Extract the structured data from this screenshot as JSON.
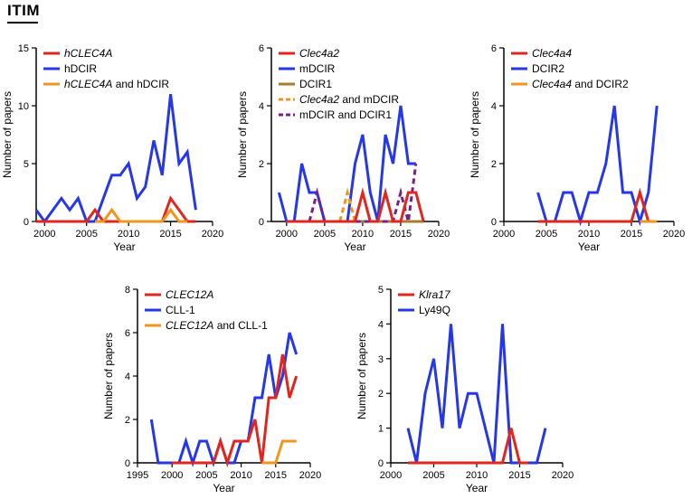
{
  "heading": "ITIM",
  "colors": {
    "red": "#e0261e",
    "blue": "#2637e8",
    "orange": "#f0961e",
    "brown": "#a87c2e",
    "purple": "#7a1f8a"
  },
  "chart_data": [
    {
      "id": "human-clec4a",
      "type": "line",
      "title": "",
      "xlabel": "Year",
      "ylabel": "Number of papers",
      "xlim": [
        1999,
        2020
      ],
      "ylim": [
        0,
        15
      ],
      "xticks": [
        2000,
        2005,
        2010,
        2015,
        2020
      ],
      "yticks": [
        0,
        5,
        10,
        15
      ],
      "legend_position": "top-left",
      "series": [
        {
          "name": "hDCIR",
          "label_parts": [
            {
              "text": "hDCIR",
              "italic": false
            }
          ],
          "color": "#2637e8",
          "dash": "",
          "x": [
            1999,
            2000,
            2001,
            2002,
            2003,
            2004,
            2005,
            2006,
            2007,
            2008,
            2009,
            2010,
            2011,
            2012,
            2013,
            2014,
            2015,
            2016,
            2017,
            2018
          ],
          "y": [
            1,
            0,
            1,
            2,
            1,
            2,
            0,
            0,
            2,
            4,
            4,
            5,
            2,
            3,
            7,
            4,
            11,
            5,
            6,
            1
          ]
        },
        {
          "name": "hCLEC4A",
          "label_parts": [
            {
              "text": "hCLEC4A",
              "italic": true
            }
          ],
          "color": "#e0261e",
          "dash": "",
          "x": [
            1999,
            2000,
            2001,
            2002,
            2003,
            2004,
            2005,
            2006,
            2007,
            2008,
            2009,
            2010,
            2011,
            2012,
            2013,
            2014,
            2015,
            2016,
            2017,
            2018
          ],
          "y": [
            0,
            0,
            0,
            0,
            0,
            0,
            0,
            1,
            0,
            0,
            0,
            0,
            0,
            0,
            0,
            0,
            2,
            1,
            0,
            0
          ]
        },
        {
          "name": "hCLEC4A and hDCIR",
          "label_parts": [
            {
              "text": "hCLEC4A",
              "italic": true
            },
            {
              "text": " and hDCIR",
              "italic": false
            }
          ],
          "color": "#f0961e",
          "dash": "",
          "x": [
            2006,
            2007,
            2008,
            2009,
            2010,
            2011,
            2012,
            2013,
            2014,
            2015,
            2016,
            2017
          ],
          "y": [
            0,
            0,
            1,
            0,
            0,
            0,
            0,
            0,
            0,
            1,
            0,
            0
          ]
        }
      ],
      "legend_order": [
        1,
        0,
        2
      ]
    },
    {
      "id": "mouse-clec4a2",
      "type": "line",
      "title": "",
      "xlabel": "Year",
      "ylabel": "Number of papers",
      "xlim": [
        1998,
        2020
      ],
      "ylim": [
        0,
        6
      ],
      "xticks": [
        2000,
        2005,
        2010,
        2015,
        2020
      ],
      "yticks": [
        0,
        2,
        4,
        6
      ],
      "legend_position": "top-left",
      "series": [
        {
          "name": "mDCIR",
          "label_parts": [
            {
              "text": "mDCIR",
              "italic": false
            }
          ],
          "color": "#2637e8",
          "dash": "",
          "x": [
            1999,
            2000,
            2001,
            2002,
            2003,
            2004,
            2005,
            2006,
            2007,
            2008,
            2009,
            2010,
            2011,
            2012,
            2013,
            2014,
            2015,
            2016,
            2017
          ],
          "y": [
            1,
            0,
            0,
            2,
            1,
            1,
            0,
            0,
            0,
            0,
            2,
            3,
            1,
            0,
            3,
            2,
            4,
            2,
            2
          ]
        },
        {
          "name": "DCIR1",
          "label_parts": [
            {
              "text": "DCIR1",
              "italic": false
            }
          ],
          "color": "#a87c2e",
          "dash": "",
          "x": [
            2000,
            2018
          ],
          "y": [
            0,
            0
          ]
        },
        {
          "name": "Clec4a2 and mDCIR",
          "label_parts": [
            {
              "text": "Clec4a2",
              "italic": true
            },
            {
              "text": " and mDCIR",
              "italic": false
            }
          ],
          "color": "#f0961e",
          "dash": "6,4",
          "x": [
            2007,
            2008,
            2009
          ],
          "y": [
            0,
            1,
            0
          ]
        },
        {
          "name": "mDCIR and DCIR1",
          "label_parts": [
            {
              "text": "mDCIR and DCIR1",
              "italic": false
            }
          ],
          "color": "#7a1f8a",
          "dash": "6,4",
          "x": [
            2003,
            2004,
            2005,
            2014,
            2015,
            2016,
            2017
          ],
          "y": [
            0,
            1,
            0,
            0,
            1,
            0,
            2
          ]
        },
        {
          "name": "Clec4a2",
          "label_parts": [
            {
              "text": "Clec4a2",
              "italic": true
            }
          ],
          "color": "#e0261e",
          "dash": "",
          "x": [
            2000,
            2009,
            2010,
            2011,
            2012,
            2013,
            2014,
            2015,
            2016,
            2017,
            2018
          ],
          "y": [
            0,
            0,
            1,
            0,
            0,
            1,
            0,
            0,
            1,
            1,
            0
          ]
        }
      ],
      "legend_order": [
        4,
        0,
        1,
        2,
        3
      ]
    },
    {
      "id": "mouse-clec4a4",
      "type": "line",
      "title": "",
      "xlabel": "Year",
      "ylabel": "Number of papers",
      "xlim": [
        2000,
        2020
      ],
      "ylim": [
        0,
        6
      ],
      "xticks": [
        2000,
        2005,
        2010,
        2015,
        2020
      ],
      "yticks": [
        0,
        2,
        4,
        6
      ],
      "legend_position": "top-left",
      "series": [
        {
          "name": "DCIR2",
          "label_parts": [
            {
              "text": "DCIR2",
              "italic": false
            }
          ],
          "color": "#2637e8",
          "dash": "",
          "x": [
            2004,
            2005,
            2006,
            2007,
            2008,
            2009,
            2010,
            2011,
            2012,
            2013,
            2014,
            2015,
            2016,
            2017,
            2018
          ],
          "y": [
            1,
            0,
            0,
            1,
            1,
            0,
            1,
            1,
            2,
            4,
            1,
            1,
            0,
            1,
            4
          ]
        },
        {
          "name": "Clec4a4",
          "label_parts": [
            {
              "text": "Clec4a4",
              "italic": true
            }
          ],
          "color": "#e0261e",
          "dash": "",
          "x": [
            2004,
            2015,
            2016,
            2017
          ],
          "y": [
            0,
            0,
            1,
            0
          ]
        },
        {
          "name": "Clec4a4 and DCIR2",
          "label_parts": [
            {
              "text": "Clec4a4",
              "italic": true
            },
            {
              "text": " and DCIR2",
              "italic": false
            }
          ],
          "color": "#f0961e",
          "dash": "",
          "x": [
            2016,
            2017,
            2018
          ],
          "y": [
            0,
            0,
            0
          ]
        }
      ],
      "legend_order": [
        1,
        0,
        2
      ]
    },
    {
      "id": "clec12a",
      "type": "line",
      "title": "",
      "xlabel": "Year",
      "ylabel": "Number of papers",
      "xlim": [
        1995,
        2020
      ],
      "ylim": [
        0,
        8
      ],
      "xticks": [
        1995,
        2000,
        2005,
        2010,
        2015,
        2020
      ],
      "yticks": [
        0,
        2,
        4,
        6,
        8
      ],
      "legend_position": "top-left",
      "series": [
        {
          "name": "CLL-1",
          "label_parts": [
            {
              "text": "CLL-1",
              "italic": false
            }
          ],
          "color": "#2637e8",
          "dash": "",
          "x": [
            1997,
            1998,
            1999,
            2000,
            2001,
            2002,
            2003,
            2004,
            2005,
            2006,
            2007,
            2008,
            2009,
            2010,
            2011,
            2012,
            2013,
            2014,
            2015,
            2016,
            2017,
            2018
          ],
          "y": [
            2,
            0,
            0,
            0,
            0,
            1,
            0,
            1,
            1,
            0,
            1,
            0,
            0,
            1,
            1,
            3,
            3,
            5,
            3,
            4,
            6,
            5
          ]
        },
        {
          "name": "CLEC12A",
          "label_parts": [
            {
              "text": "CLEC12A",
              "italic": true
            }
          ],
          "color": "#e0261e",
          "dash": "",
          "x": [
            2000,
            2006,
            2007,
            2008,
            2009,
            2010,
            2011,
            2012,
            2013,
            2014,
            2015,
            2016,
            2017,
            2018
          ],
          "y": [
            0,
            0,
            1,
            0,
            1,
            1,
            1,
            2,
            0,
            3,
            3,
            5,
            3,
            4
          ]
        },
        {
          "name": "CLEC12A and CLL-1",
          "label_parts": [
            {
              "text": "CLEC12A",
              "italic": true
            },
            {
              "text": " and CLL-1",
              "italic": false
            }
          ],
          "color": "#f0961e",
          "dash": "",
          "x": [
            2013,
            2014,
            2015,
            2016,
            2017,
            2018
          ],
          "y": [
            0,
            0,
            0,
            1,
            1,
            1
          ]
        }
      ],
      "legend_order": [
        1,
        0,
        2
      ]
    },
    {
      "id": "klra17",
      "type": "line",
      "title": "",
      "xlabel": "Year",
      "ylabel": "Number of papers",
      "xlim": [
        2000,
        2020
      ],
      "ylim": [
        0,
        5
      ],
      "xticks": [
        2000,
        2005,
        2010,
        2015,
        2020
      ],
      "yticks": [
        0,
        1,
        2,
        3,
        4,
        5
      ],
      "legend_position": "top-left",
      "series": [
        {
          "name": "Ly49Q",
          "label_parts": [
            {
              "text": "Ly49Q",
              "italic": false
            }
          ],
          "color": "#2637e8",
          "dash": "",
          "x": [
            2002,
            2003,
            2004,
            2005,
            2006,
            2007,
            2008,
            2009,
            2010,
            2011,
            2012,
            2013,
            2014,
            2015,
            2016,
            2017,
            2018
          ],
          "y": [
            1,
            0,
            2,
            3,
            1,
            4,
            1,
            2,
            2,
            1,
            0,
            4,
            0,
            0,
            0,
            0,
            1
          ]
        },
        {
          "name": "Klra17",
          "label_parts": [
            {
              "text": "Klra17",
              "italic": true
            }
          ],
          "color": "#e0261e",
          "dash": "",
          "x": [
            2002,
            2013,
            2014,
            2015,
            2016
          ],
          "y": [
            0,
            0,
            1,
            0,
            0
          ]
        }
      ],
      "legend_order": [
        1,
        0
      ]
    }
  ]
}
